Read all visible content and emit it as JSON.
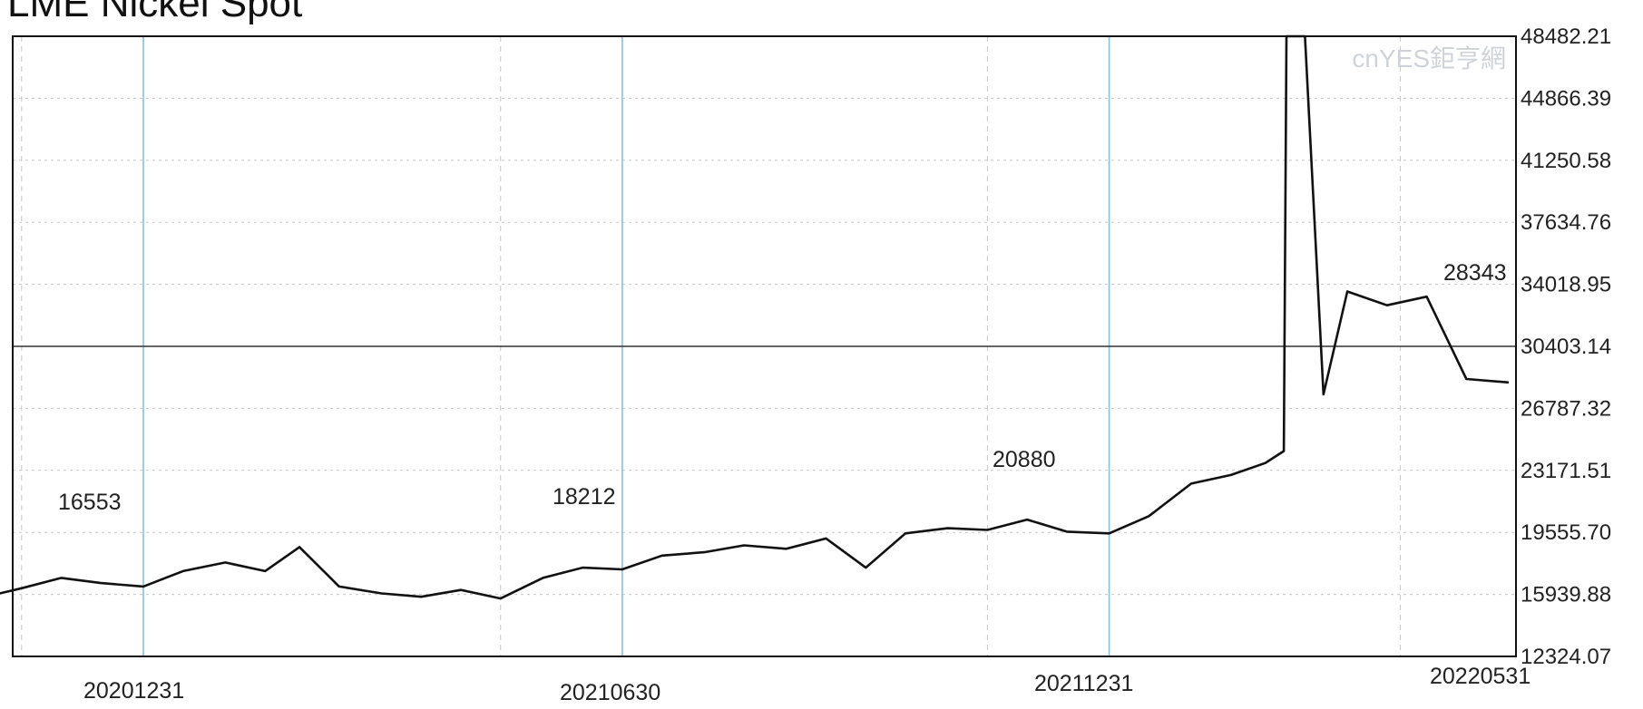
{
  "chart_data": {
    "type": "line",
    "title": "LME Nickel Spot",
    "watermark": "cnYES鉅亨網",
    "ylim": [
      12324.07,
      48482.21
    ],
    "y_ticks": [
      "48482.21",
      "44866.39",
      "41250.58",
      "37634.76",
      "34018.95",
      "30403.14",
      "26787.32",
      "23171.51",
      "19555.70",
      "15939.88",
      "12324.07"
    ],
    "reference_line": 30403.14,
    "x_labels": [
      "20201231",
      "20210630",
      "20211231",
      "20220531"
    ],
    "data_labels": [
      "16553",
      "18212",
      "20880",
      "28343"
    ],
    "grid": true,
    "colors": {
      "line": "#111111",
      "date_line": "#7fc4e8",
      "grid": "#c8c8c8",
      "ref_line": "#333333"
    },
    "series": [
      {
        "x": [
          "20201015",
          "20201031",
          "20201115",
          "20201130",
          "20201215",
          "20201231",
          "20210115",
          "20210131",
          "20210215",
          "20210228",
          "20210315",
          "20210331",
          "20210415",
          "20210430",
          "20210515",
          "20210531",
          "20210615",
          "20210630",
          "20210715",
          "20210731",
          "20210815",
          "20210831",
          "20210915",
          "20210930",
          "20211015",
          "20211031",
          "20211115",
          "20211130",
          "20211215",
          "20211231",
          "20220115",
          "20220131",
          "20220215",
          "20220228",
          "20220307",
          "20220308",
          "20220315",
          "20220322",
          "20220331",
          "20220415",
          "20220430",
          "20220515",
          "20220531"
        ],
        "values": [
          15500,
          15750,
          16300,
          16900,
          16600,
          16400,
          17300,
          17800,
          17300,
          18700,
          16400,
          16000,
          15800,
          16200,
          15700,
          16900,
          17500,
          17400,
          18200,
          18400,
          18800,
          18600,
          19200,
          17500,
          19500,
          19800,
          19700,
          20300,
          19600,
          19500,
          20500,
          22400,
          22900,
          23600,
          24300,
          48482,
          48482,
          27600,
          33600,
          32800,
          33300,
          28500,
          28300
        ]
      }
    ]
  }
}
